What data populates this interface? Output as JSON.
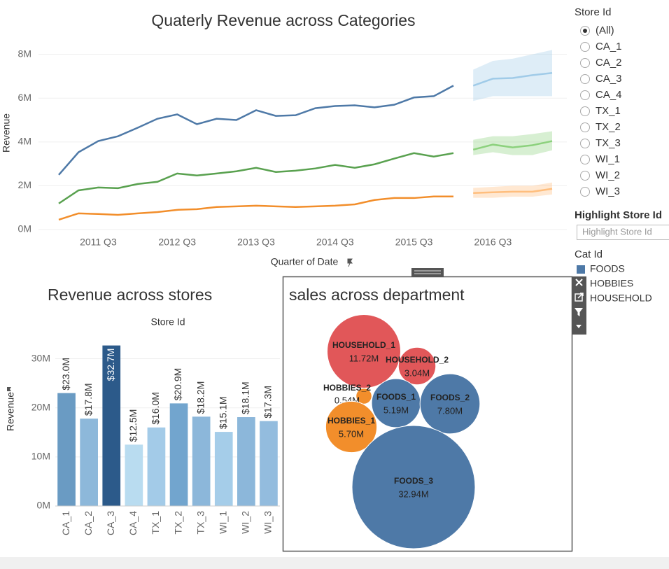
{
  "chart_data": [
    {
      "type": "line",
      "title": "Quaterly Revenue across Categories",
      "x_label": "Quarter of Date",
      "y_label": "Revenue",
      "legend_title": "Cat Id",
      "categories": [
        null,
        null,
        "2011 Q3",
        null,
        null,
        null,
        "2012 Q3",
        null,
        null,
        null,
        "2013 Q3",
        null,
        null,
        null,
        "2014 Q3",
        null,
        null,
        null,
        "2015 Q3",
        null,
        null,
        null,
        "2016 Q3",
        null,
        null,
        null
      ],
      "ylim": [
        0,
        8500000
      ],
      "yticks": [
        {
          "value": 0,
          "label": "0M"
        },
        {
          "value": 2000000,
          "label": "2M"
        },
        {
          "value": 4000000,
          "label": "4M"
        },
        {
          "value": 6000000,
          "label": "6M"
        },
        {
          "value": 8000000,
          "label": "8M"
        }
      ],
      "grid": true,
      "series": [
        {
          "name": "FOODS",
          "color": "#4e79a7",
          "forecast_color": "#a0cbe8",
          "values": [
            2500000,
            3530000,
            4040000,
            4260000,
            4650000,
            5060000,
            5260000,
            4810000,
            5060000,
            5000000,
            5450000,
            5190000,
            5220000,
            5540000,
            5640000,
            5670000,
            5580000,
            5700000,
            6030000,
            6090000,
            6570000,
            null,
            null,
            null,
            null,
            null
          ],
          "forecast": [
            null,
            null,
            null,
            null,
            null,
            null,
            null,
            null,
            null,
            null,
            null,
            null,
            null,
            null,
            null,
            null,
            null,
            null,
            null,
            null,
            null,
            6570000,
            6890000,
            6920000,
            7050000,
            7150000
          ],
          "forecast_upper": [
            null,
            null,
            null,
            null,
            null,
            null,
            null,
            null,
            null,
            null,
            null,
            null,
            null,
            null,
            null,
            null,
            null,
            null,
            null,
            null,
            null,
            7300000,
            7700000,
            7800000,
            8000000,
            8200000
          ],
          "forecast_lower": [
            null,
            null,
            null,
            null,
            null,
            null,
            null,
            null,
            null,
            null,
            null,
            null,
            null,
            null,
            null,
            null,
            null,
            null,
            null,
            null,
            null,
            5870000,
            6090000,
            6090000,
            6090000,
            6090000
          ]
        },
        {
          "name": "HOBBIES",
          "color": "#f28e2b",
          "forecast_color": "#ffbe7d",
          "values": [
            450000,
            740000,
            710000,
            670000,
            740000,
            800000,
            900000,
            930000,
            1030000,
            1060000,
            1090000,
            1060000,
            1030000,
            1060000,
            1090000,
            1150000,
            1350000,
            1440000,
            1440000,
            1510000,
            1510000,
            null,
            null,
            null,
            null,
            null
          ],
          "forecast": [
            null,
            null,
            null,
            null,
            null,
            null,
            null,
            null,
            null,
            null,
            null,
            null,
            null,
            null,
            null,
            null,
            null,
            null,
            null,
            null,
            null,
            1670000,
            1700000,
            1730000,
            1730000,
            1860000
          ],
          "forecast_upper": [
            null,
            null,
            null,
            null,
            null,
            null,
            null,
            null,
            null,
            null,
            null,
            null,
            null,
            null,
            null,
            null,
            null,
            null,
            null,
            null,
            null,
            1900000,
            1950000,
            2000000,
            2000000,
            2150000
          ],
          "forecast_lower": [
            null,
            null,
            null,
            null,
            null,
            null,
            null,
            null,
            null,
            null,
            null,
            null,
            null,
            null,
            null,
            null,
            null,
            null,
            null,
            null,
            null,
            1450000,
            1450000,
            1500000,
            1500000,
            1600000
          ]
        },
        {
          "name": "HOUSEHOLD",
          "color": "#59a14f",
          "forecast_color": "#8cd17d",
          "values": [
            1190000,
            1790000,
            1920000,
            1890000,
            2080000,
            2180000,
            2560000,
            2470000,
            2560000,
            2660000,
            2820000,
            2630000,
            2690000,
            2790000,
            2950000,
            2820000,
            2980000,
            3240000,
            3490000,
            3330000,
            3490000,
            null,
            null,
            null,
            null,
            null
          ],
          "forecast": [
            null,
            null,
            null,
            null,
            null,
            null,
            null,
            null,
            null,
            null,
            null,
            null,
            null,
            null,
            null,
            null,
            null,
            null,
            null,
            null,
            null,
            3650000,
            3880000,
            3750000,
            3850000,
            4040000
          ],
          "forecast_upper": [
            null,
            null,
            null,
            null,
            null,
            null,
            null,
            null,
            null,
            null,
            null,
            null,
            null,
            null,
            null,
            null,
            null,
            null,
            null,
            null,
            null,
            4100000,
            4260000,
            4260000,
            4360000,
            4490000
          ],
          "forecast_lower": [
            null,
            null,
            null,
            null,
            null,
            null,
            null,
            null,
            null,
            null,
            null,
            null,
            null,
            null,
            null,
            null,
            null,
            null,
            null,
            null,
            null,
            3400000,
            3530000,
            3400000,
            3400000,
            3620000
          ]
        }
      ]
    },
    {
      "type": "bar",
      "title": "Revenue across stores",
      "x_label": "Store Id",
      "y_label": "Revenue",
      "categories": [
        "CA_1",
        "CA_2",
        "CA_3",
        "CA_4",
        "TX_1",
        "TX_2",
        "TX_3",
        "WI_1",
        "WI_2",
        "WI_3"
      ],
      "values": [
        23000000,
        17800000,
        32700000,
        12500000,
        16000000,
        20900000,
        18200000,
        15100000,
        18100000,
        17300000
      ],
      "value_labels": [
        "$23.0M",
        "$17.8M",
        "$32.7M",
        "$12.5M",
        "$16.0M",
        "$20.9M",
        "$18.2M",
        "$15.1M",
        "$18.1M",
        "$17.3M"
      ],
      "colors": [
        "#6a9bc3",
        "#8db8da",
        "#2c5a8a",
        "#b9dcf0",
        "#a3cbe8",
        "#72a5ce",
        "#8cb7da",
        "#a5cde9",
        "#8cb7da",
        "#93bcde"
      ],
      "ylim": [
        0,
        33500000
      ],
      "yticks": [
        {
          "value": 0,
          "label": "0M"
        },
        {
          "value": 10000000,
          "label": "10M"
        },
        {
          "value": 20000000,
          "label": "20M"
        },
        {
          "value": 30000000,
          "label": "30M"
        }
      ],
      "grid": true
    },
    {
      "type": "bubble",
      "title": "sales across department",
      "categories": [
        "HOUSEHOLD_1",
        "HOUSEHOLD_2",
        "HOBBIES_2",
        "FOODS_1",
        "FOODS_2",
        "HOBBIES_1",
        "FOODS_3"
      ],
      "values": [
        11720000,
        3040000,
        540000,
        5190000,
        7800000,
        5700000,
        32940000
      ],
      "value_labels": [
        "11.72M",
        "3.04M",
        "0.54M",
        "5.19M",
        "7.80M",
        "5.70M",
        "32.94M"
      ],
      "colors": [
        "#e15759",
        "#e15759",
        "#f28e2b",
        "#4e79a7",
        "#4e79a7",
        "#f28e2b",
        "#4e79a7"
      ]
    }
  ],
  "filters": {
    "store_id": {
      "title": "Store Id",
      "options": [
        "(All)",
        "CA_1",
        "CA_2",
        "CA_3",
        "CA_4",
        "TX_1",
        "TX_2",
        "TX_3",
        "WI_1",
        "WI_2",
        "WI_3"
      ],
      "selected": 0
    },
    "highlight": {
      "title": "Highlight Store Id",
      "placeholder": "Highlight Store Id"
    }
  }
}
